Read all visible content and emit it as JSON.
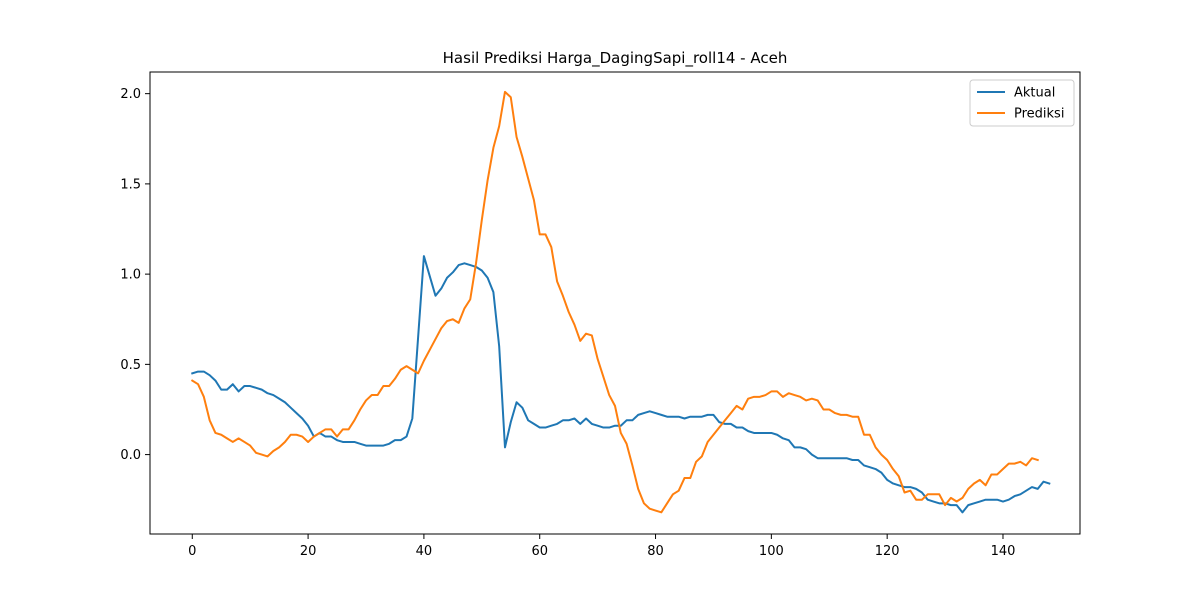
{
  "chart_data": {
    "type": "line",
    "title": "Hasil Prediksi Harga_DagingSapi_roll14 - Aceh",
    "xlabel": "",
    "ylabel": "",
    "xlim": [
      -7.3,
      153.3
    ],
    "ylim": [
      -0.44,
      2.12
    ],
    "xticks": [
      0,
      20,
      40,
      60,
      80,
      100,
      120,
      140
    ],
    "yticks": [
      0.0,
      0.5,
      1.0,
      1.5,
      2.0
    ],
    "ytick_labels": [
      "0.0",
      "0.5",
      "1.0",
      "1.5",
      "2.0"
    ],
    "grid": false,
    "legend_position": "top-right",
    "colors": {
      "Aktual": "#1f77b4",
      "Prediksi": "#ff7f0e"
    },
    "series": [
      {
        "name": "Aktual",
        "values": [
          0.45,
          0.46,
          0.46,
          0.44,
          0.41,
          0.36,
          0.36,
          0.39,
          0.35,
          0.38,
          0.38,
          0.37,
          0.36,
          0.34,
          0.33,
          0.31,
          0.29,
          0.26,
          0.23,
          0.2,
          0.16,
          0.1,
          0.12,
          0.1,
          0.1,
          0.08,
          0.07,
          0.07,
          0.07,
          0.06,
          0.05,
          0.05,
          0.05,
          0.05,
          0.06,
          0.08,
          0.08,
          0.1,
          0.2,
          0.65,
          1.1,
          0.99,
          0.88,
          0.92,
          0.98,
          1.01,
          1.05,
          1.06,
          1.05,
          1.04,
          1.02,
          0.98,
          0.9,
          0.6,
          0.04,
          0.18,
          0.29,
          0.26,
          0.19,
          0.17,
          0.15,
          0.15,
          0.16,
          0.17,
          0.19,
          0.19,
          0.2,
          0.17,
          0.2,
          0.17,
          0.16,
          0.15,
          0.15,
          0.16,
          0.16,
          0.19,
          0.19,
          0.22,
          0.23,
          0.24,
          0.23,
          0.22,
          0.21,
          0.21,
          0.21,
          0.2,
          0.21,
          0.21,
          0.21,
          0.22,
          0.22,
          0.18,
          0.17,
          0.17,
          0.15,
          0.15,
          0.13,
          0.12,
          0.12,
          0.12,
          0.12,
          0.11,
          0.09,
          0.08,
          0.04,
          0.04,
          0.03,
          0.0,
          -0.02,
          -0.02,
          -0.02,
          -0.02,
          -0.02,
          -0.02,
          -0.03,
          -0.03,
          -0.06,
          -0.07,
          -0.08,
          -0.1,
          -0.14,
          -0.16,
          -0.17,
          -0.18,
          -0.18,
          -0.19,
          -0.21,
          -0.25,
          -0.26,
          -0.27,
          -0.27,
          -0.28,
          -0.28,
          -0.32,
          -0.28,
          -0.27,
          -0.26,
          -0.25,
          -0.25,
          -0.25,
          -0.26,
          -0.25,
          -0.23,
          -0.22,
          -0.2,
          -0.18,
          -0.19,
          -0.15,
          -0.16
        ]
      },
      {
        "name": "Prediksi",
        "values": [
          0.41,
          0.39,
          0.32,
          0.19,
          0.12,
          0.11,
          0.09,
          0.07,
          0.09,
          0.07,
          0.05,
          0.01,
          0.0,
          -0.01,
          0.02,
          0.04,
          0.07,
          0.11,
          0.11,
          0.1,
          0.07,
          0.1,
          0.12,
          0.14,
          0.14,
          0.1,
          0.14,
          0.14,
          0.19,
          0.25,
          0.3,
          0.33,
          0.33,
          0.38,
          0.38,
          0.42,
          0.47,
          0.49,
          0.47,
          0.45,
          0.52,
          0.58,
          0.64,
          0.7,
          0.74,
          0.75,
          0.73,
          0.81,
          0.86,
          1.06,
          1.3,
          1.52,
          1.7,
          1.82,
          2.01,
          1.98,
          1.76,
          1.65,
          1.53,
          1.41,
          1.22,
          1.22,
          1.15,
          0.96,
          0.88,
          0.79,
          0.72,
          0.63,
          0.67,
          0.66,
          0.53,
          0.43,
          0.33,
          0.27,
          0.12,
          0.06,
          -0.06,
          -0.19,
          -0.27,
          -0.3,
          -0.31,
          -0.32,
          -0.27,
          -0.22,
          -0.2,
          -0.13,
          -0.13,
          -0.04,
          -0.01,
          0.07,
          0.11,
          0.15,
          0.19,
          0.23,
          0.27,
          0.25,
          0.31,
          0.32,
          0.32,
          0.33,
          0.35,
          0.35,
          0.32,
          0.34,
          0.33,
          0.32,
          0.3,
          0.31,
          0.3,
          0.25,
          0.25,
          0.23,
          0.22,
          0.22,
          0.21,
          0.21,
          0.11,
          0.11,
          0.04,
          0.0,
          -0.03,
          -0.08,
          -0.12,
          -0.21,
          -0.2,
          -0.25,
          -0.25,
          -0.22,
          -0.22,
          -0.22,
          -0.28,
          -0.24,
          -0.26,
          -0.24,
          -0.19,
          -0.16,
          -0.14,
          -0.17,
          -0.11,
          -0.11,
          -0.08,
          -0.05,
          -0.05,
          -0.04,
          -0.06,
          -0.02,
          -0.03
        ]
      }
    ]
  }
}
